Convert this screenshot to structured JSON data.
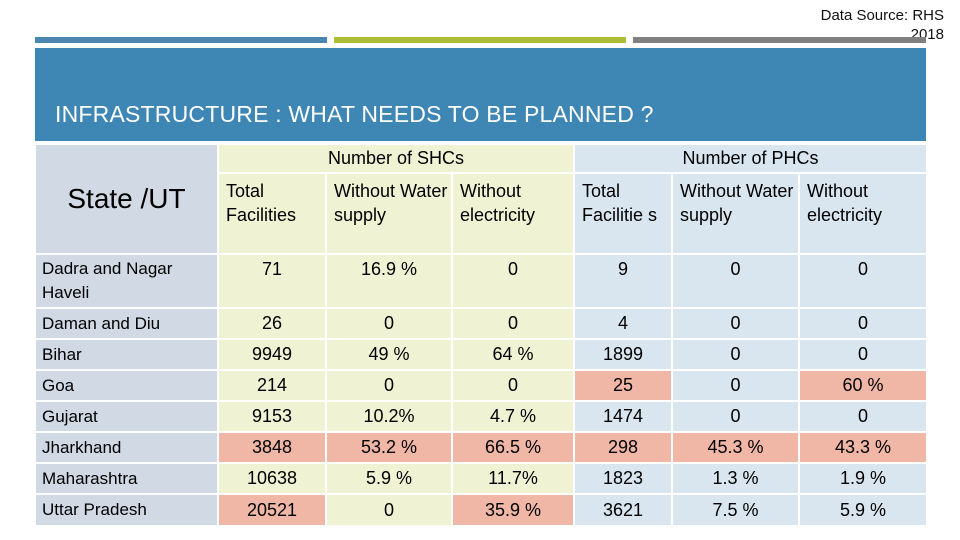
{
  "source_note": {
    "line1": "Data Source: RHS",
    "line2": "2018"
  },
  "accent_colors": {
    "blue": "#4a86b0",
    "green": "#aebd38",
    "gray": "#808080",
    "banner": "#3e86b4"
  },
  "title": "INFRASTRUCTURE : WHAT NEEDS TO BE PLANNED ?",
  "table": {
    "state_header": "State /UT",
    "shc_group": "Number of SHCs",
    "phc_group": "Number of PHCs",
    "shc_columns": [
      "Total Facilities",
      "Without Water supply",
      "Without electricity"
    ],
    "phc_columns": [
      "Total Facilitie s",
      "Without Water supply",
      "Without electricity"
    ],
    "rows": [
      {
        "state": "Dadra and Nagar Haveli",
        "values": [
          "71",
          "16.9 %",
          "0",
          "9",
          "0",
          "0"
        ]
      },
      {
        "state": "Daman and Diu",
        "values": [
          "26",
          "0",
          "0",
          "4",
          "0",
          "0"
        ]
      },
      {
        "state": "Bihar",
        "values": [
          "9949",
          "49 %",
          "64 %",
          "1899",
          "0",
          "0"
        ]
      },
      {
        "state": "Goa",
        "values": [
          "214",
          "0",
          "0",
          "25",
          "0",
          "60 %"
        ]
      },
      {
        "state": "Gujarat",
        "values": [
          "9153",
          "10.2%",
          "4.7 %",
          "1474",
          "0",
          "0"
        ]
      },
      {
        "state": "Jharkhand",
        "values": [
          "3848",
          "53.2 %",
          "66.5 %",
          "298",
          "45.3 %",
          "43.3 %"
        ]
      },
      {
        "state": "Maharashtra",
        "values": [
          "10638",
          "5.9 %",
          "11.7%",
          "1823",
          "1.3 %",
          "1.9 %"
        ]
      },
      {
        "state": "Uttar Pradesh",
        "values": [
          "20521",
          "0",
          "35.9 %",
          "3621",
          "7.5 %",
          "5.9 %"
        ]
      }
    ]
  }
}
